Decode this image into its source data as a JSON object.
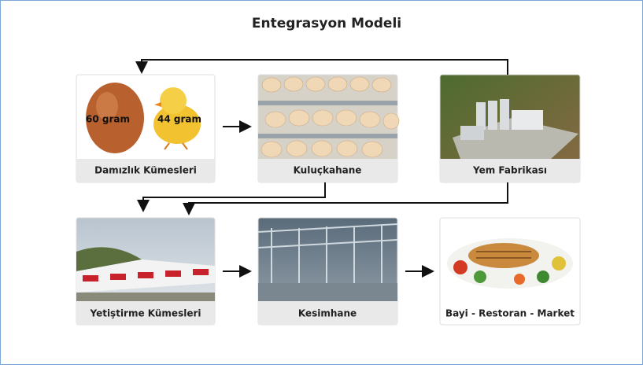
{
  "title": "Entegrasyon Modeli",
  "nodes": [
    {
      "label": "Damızlık Kümesleri",
      "annotations": [
        "60 gram",
        "44 gram"
      ]
    },
    {
      "label": "Kuluçkahane"
    },
    {
      "label": "Yem Fabrikası"
    },
    {
      "label": "Yetiştirme Kümesleri"
    },
    {
      "label": "Kesimhane"
    },
    {
      "label": "Bayi - Restoran - Market"
    }
  ]
}
